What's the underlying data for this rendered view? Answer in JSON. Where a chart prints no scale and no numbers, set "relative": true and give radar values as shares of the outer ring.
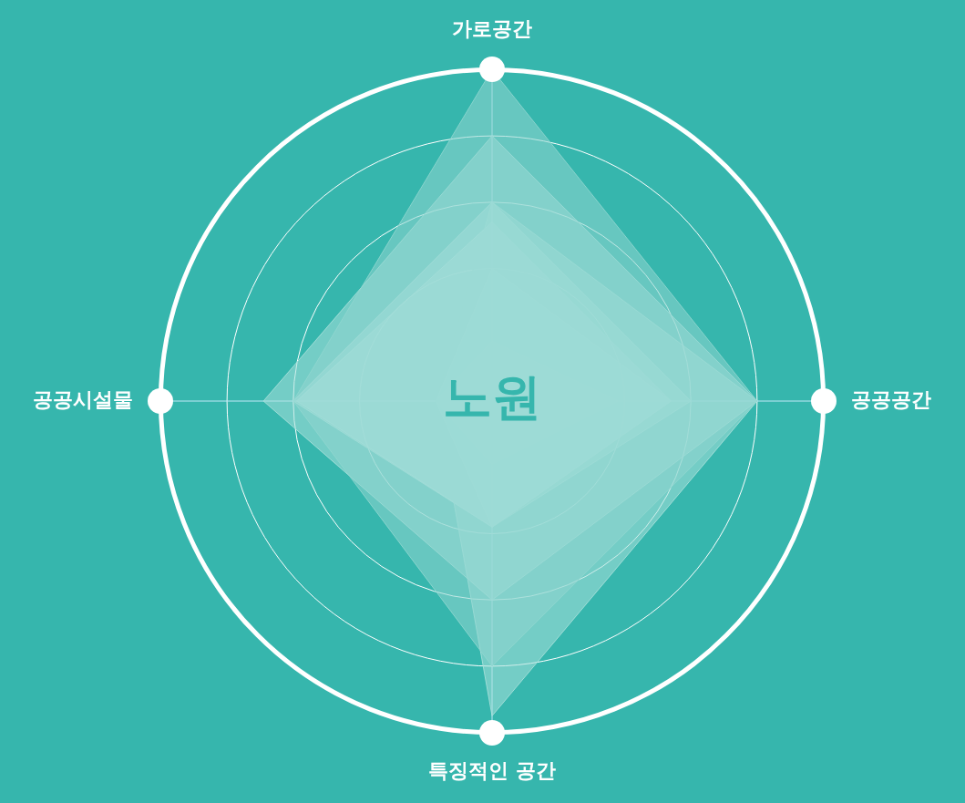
{
  "chart_data": {
    "type": "radar",
    "relative": true,
    "categories": [
      "가로공간",
      "공공공간",
      "특징적인 공간",
      "공공시설물"
    ],
    "series": [
      {
        "color": "#8fd6cf",
        "values": [
          1.0,
          0.8,
          0.8,
          0.6
        ]
      },
      {
        "color": "#a8e0da",
        "values": [
          0.8,
          0.8,
          0.6,
          0.69
        ]
      },
      {
        "color": "#a8e0da",
        "values": [
          0.6,
          0.8,
          0.95,
          0.17
        ]
      },
      {
        "color": "#c4ebe7",
        "values": [
          0.6,
          0.6,
          0.38,
          0.6
        ]
      },
      {
        "color": "#d4f0ee",
        "values": [
          0.54,
          0.54,
          0.38,
          0.59
        ]
      },
      {
        "color": "#e8f6f5",
        "values": [
          0.4,
          0.54,
          0.38,
          0.17
        ]
      },
      {
        "color": "#d6eef7",
        "values": [
          0.18,
          0.38,
          0.19,
          0.17
        ]
      }
    ],
    "annotations": [
      "노원"
    ],
    "legend": false,
    "grid": true
  }
}
